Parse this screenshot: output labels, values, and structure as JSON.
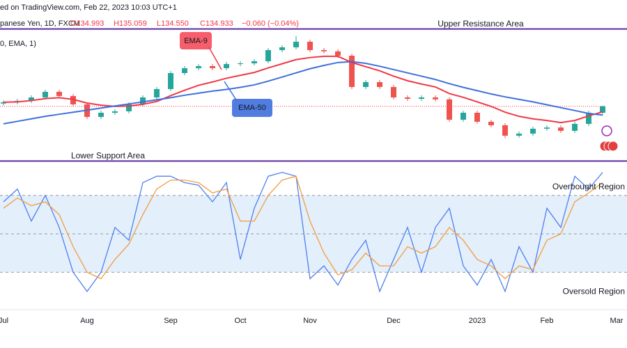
{
  "header": {
    "source": "ed on TradingView.com, Feb 22, 2023 10:03 UTC+1",
    "symbol": "panese Yen, 1D, FXCM",
    "open": "O134.993",
    "high": "H135.059",
    "low": "L134.550",
    "close": "C134.933",
    "change": "−0.060 (−0.04%)",
    "indicator": "0, EMA, 1)"
  },
  "chart_data": [
    {
      "type": "candlestick",
      "categories": [
        "Jul",
        null,
        null,
        null,
        null,
        null,
        "Aug",
        null,
        null,
        null,
        null,
        null,
        "Sep",
        null,
        null,
        null,
        null,
        "Oct",
        null,
        null,
        null,
        null,
        "Nov",
        null,
        null,
        null,
        null,
        null,
        "Dec",
        null,
        null,
        null,
        null,
        null,
        "2023",
        null,
        null,
        null,
        null,
        "Feb",
        null,
        null,
        null,
        null,
        "Mar"
      ],
      "open": [
        135.6,
        135.89,
        136.23,
        137.07,
        138.42,
        137.41,
        135.39,
        132.36,
        133.37,
        133.71,
        135.39,
        137.07,
        139.09,
        142.95,
        144.13,
        144.63,
        144.13,
        145.14,
        145.3,
        145.81,
        148.5,
        149.17,
        150.52,
        148.5,
        148.2,
        147.15,
        139.59,
        140.77,
        139.59,
        137.07,
        136.73,
        137.07,
        136.6,
        131.69,
        133.37,
        131.19,
        130.35,
        127.83,
        128.33,
        129.51,
        129.8,
        129.0,
        130.68,
        133.37,
        null
      ],
      "high": [
        136.39,
        136.73,
        137.57,
        138.92,
        138.92,
        137.91,
        135.89,
        133.87,
        134.21,
        135.89,
        137.57,
        139.59,
        143.45,
        144.63,
        145.13,
        145.13,
        145.64,
        145.8,
        146.31,
        149.0,
        149.67,
        151.9,
        151.02,
        149.0,
        148.7,
        147.65,
        141.27,
        141.27,
        140.09,
        137.57,
        137.57,
        137.57,
        137.1,
        133.87,
        133.87,
        131.69,
        130.85,
        128.83,
        130.01,
        130.3,
        130.3,
        131.18,
        133.87,
        135.06,
        null
      ],
      "low": [
        135.1,
        135.39,
        135.73,
        136.57,
        136.91,
        134.89,
        131.86,
        131.86,
        132.87,
        133.21,
        134.89,
        136.57,
        138.59,
        142.45,
        143.63,
        143.63,
        143.63,
        144.64,
        144.8,
        145.31,
        148.0,
        148.67,
        148.0,
        147.7,
        146.65,
        139.09,
        139.09,
        139.09,
        136.57,
        136.23,
        136.23,
        136.1,
        131.19,
        131.19,
        130.69,
        129.85,
        127.22,
        127.33,
        127.83,
        129.01,
        128.5,
        128.5,
        130.18,
        132.87,
        null
      ],
      "close": [
        135.89,
        136.23,
        137.07,
        138.42,
        137.41,
        135.39,
        132.36,
        133.37,
        133.71,
        135.39,
        137.07,
        139.09,
        142.95,
        144.13,
        144.63,
        144.13,
        145.14,
        145.3,
        145.81,
        148.5,
        149.17,
        150.52,
        148.5,
        148.2,
        147.15,
        139.59,
        140.77,
        139.59,
        137.07,
        136.73,
        137.07,
        136.6,
        131.69,
        133.37,
        131.19,
        130.35,
        127.83,
        128.33,
        129.51,
        129.8,
        129.0,
        130.68,
        133.37,
        134.93,
        null
      ],
      "up_color": "#26a69a",
      "down_color": "#ef5350",
      "series": [
        {
          "name": "EMA-9",
          "color": "#f23645",
          "values": [
            135.9,
            136.0,
            136.3,
            136.8,
            137.0,
            136.6,
            135.7,
            135.2,
            134.9,
            135.0,
            135.4,
            136.1,
            137.5,
            138.8,
            140.0,
            140.8,
            141.7,
            142.4,
            143.1,
            144.2,
            145.2,
            146.2,
            146.7,
            147.0,
            147.0,
            145.5,
            144.5,
            143.5,
            142.2,
            141.1,
            140.3,
            139.6,
            138.0,
            137.1,
            136.0,
            134.9,
            133.5,
            132.5,
            131.9,
            131.5,
            131.0,
            131.5,
            132.6,
            133.6,
            null
          ]
        },
        {
          "name": "EMA-50",
          "color": "#3d6fdb",
          "values": [
            130.7,
            131.3,
            131.9,
            132.5,
            133.0,
            133.5,
            134.0,
            134.5,
            135.0,
            135.5,
            136.0,
            136.5,
            137.0,
            137.6,
            138.1,
            138.6,
            139.0,
            139.5,
            140.1,
            141.0,
            142.0,
            143.0,
            144.0,
            144.8,
            145.5,
            145.7,
            145.3,
            144.6,
            143.8,
            143.0,
            142.2,
            141.4,
            140.4,
            139.5,
            138.7,
            137.9,
            137.2,
            136.6,
            136.0,
            135.3,
            134.6,
            133.9,
            133.2,
            132.8,
            null
          ]
        }
      ],
      "levels": [
        {
          "label": "Upper Resistance Area",
          "value": 153.6,
          "color": "#5b2c9e"
        },
        {
          "label": "Lower Support Area",
          "value": 121.7,
          "color": "#5b2c9e"
        }
      ],
      "ylim": [
        121.6,
        160.6
      ]
    },
    {
      "type": "line",
      "series": [
        {
          "color": "#4f7ff0",
          "values": [
            75,
            85,
            60,
            80,
            55,
            20,
            5,
            20,
            55,
            45,
            90,
            95,
            95,
            90,
            88,
            75,
            90,
            30,
            70,
            95,
            98,
            95,
            15,
            25,
            10,
            30,
            45,
            5,
            30,
            55,
            20,
            55,
            70,
            25,
            10,
            30,
            5,
            40,
            20,
            70,
            55,
            95,
            85,
            98,
            null
          ]
        },
        {
          "color": "#f39c3d",
          "values": [
            70,
            78,
            72,
            75,
            65,
            40,
            20,
            15,
            30,
            42,
            65,
            85,
            92,
            92,
            90,
            82,
            85,
            60,
            60,
            80,
            92,
            95,
            60,
            35,
            18,
            22,
            35,
            25,
            25,
            40,
            35,
            40,
            55,
            45,
            30,
            25,
            15,
            25,
            22,
            45,
            50,
            75,
            82,
            90,
            null
          ]
        }
      ],
      "levels": [
        {
          "value": 80,
          "label": "Overbought Region"
        },
        {
          "value": 50
        },
        {
          "value": 20,
          "label": "Oversold Region"
        }
      ],
      "band_color": "#e3effb",
      "ylim": [
        0,
        100
      ]
    }
  ]
}
